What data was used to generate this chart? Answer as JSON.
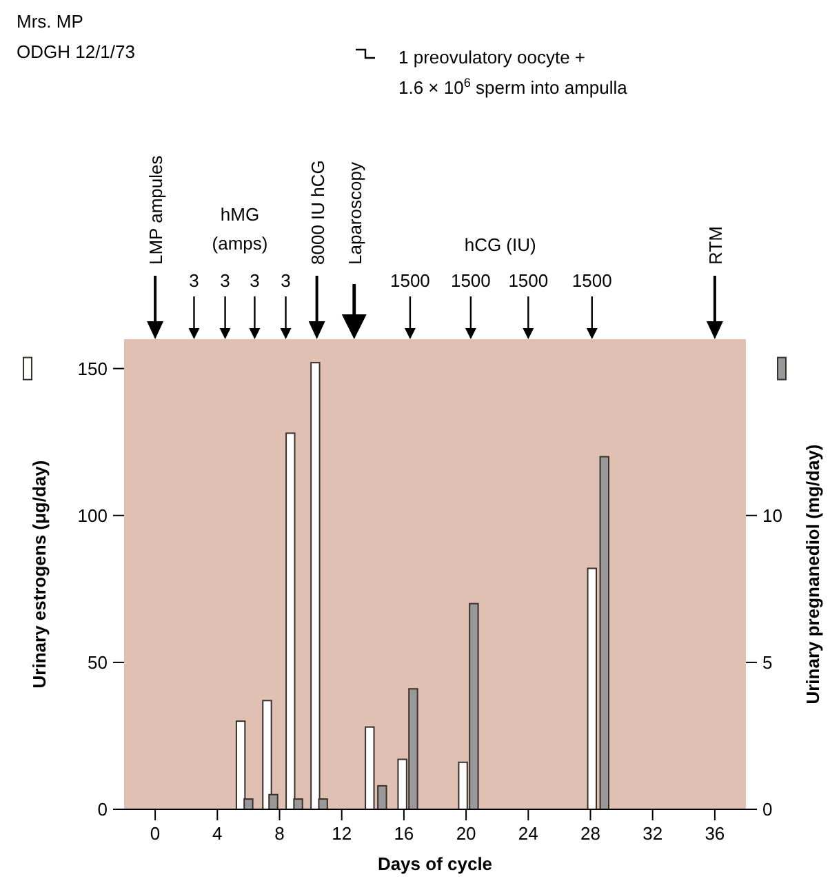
{
  "chart_data": {
    "type": "bar",
    "title": "Mrs. MP",
    "subtitle": "ODGH 12/1/73",
    "xlabel": "Days of cycle",
    "ylabel": "Urinary estrogens (μg/day)",
    "y2label": "Urinary pregnanediol (mg/day)",
    "xlim": [
      -2,
      38
    ],
    "xticks": [
      0,
      4,
      8,
      12,
      16,
      20,
      24,
      28,
      32,
      36
    ],
    "ylim": [
      0,
      160
    ],
    "yticks": [
      0,
      50,
      100,
      150
    ],
    "y2lim": [
      0,
      16
    ],
    "y2ticks": [
      0,
      5,
      10
    ],
    "series": [
      {
        "color": "#ffffff",
        "x": [
          5.5,
          7.2,
          8.7,
          10.3,
          13.8,
          15.9,
          19.8,
          28.1
        ],
        "values": [
          30,
          37,
          128,
          152,
          28,
          17,
          16,
          82
        ]
      },
      {
        "color": "#999999",
        "axis": "y2",
        "x": [
          6,
          7.6,
          9.2,
          10.8,
          14.6,
          16.6,
          20.5,
          28.9
        ],
        "values": [
          0.35,
          0.5,
          0.35,
          0.35,
          0.8,
          4.1,
          7.0,
          12.0
        ]
      }
    ],
    "annotations": [
      "1 preovulatory oocyte +",
      "1.6 × 10$^{6}$ sperm into ampulla",
      "hMG",
      "(amps)",
      "hCG (IU)",
      "LMP ampules",
      "3",
      "3",
      "3",
      "3",
      "8000 IU hCG",
      "Laparoscopy",
      "1500",
      "1500",
      "1500",
      "1500",
      "RTM"
    ]
  }
}
